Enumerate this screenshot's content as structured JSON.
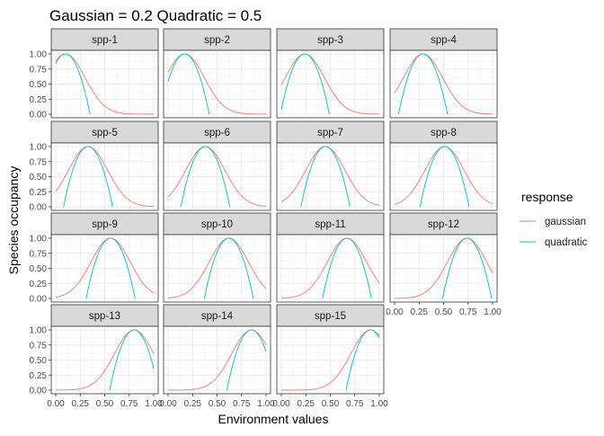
{
  "chart_data": {
    "type": "line",
    "title": "Gaussian =  0.2 Quadratic =  0.5",
    "xlabel": "Environment values",
    "ylabel": "Species occupancy",
    "xlim": [
      0,
      1
    ],
    "ylim": [
      0,
      1
    ],
    "x_ticks": [
      "0.00",
      "0.25",
      "0.50",
      "0.75",
      "1.00"
    ],
    "y_ticks": [
      "0.00",
      "0.25",
      "0.50",
      "0.75",
      "1.00"
    ],
    "grid": true,
    "legend": {
      "title": "response",
      "placement": "right",
      "entries": [
        {
          "name": "gaussian",
          "color": "#F8766D"
        },
        {
          "name": "quadratic",
          "color": "#00BFC4"
        }
      ]
    },
    "gaussian_sd": 0.2,
    "quadratic_halfwidth": 0.5,
    "panels": [
      {
        "label": "spp-1",
        "optimum": 0.1
      },
      {
        "label": "spp-2",
        "optimum": 0.17
      },
      {
        "label": "spp-3",
        "optimum": 0.24
      },
      {
        "label": "spp-4",
        "optimum": 0.29
      },
      {
        "label": "spp-5",
        "optimum": 0.33
      },
      {
        "label": "spp-6",
        "optimum": 0.38
      },
      {
        "label": "spp-7",
        "optimum": 0.45
      },
      {
        "label": "spp-8",
        "optimum": 0.51
      },
      {
        "label": "spp-9",
        "optimum": 0.56
      },
      {
        "label": "spp-10",
        "optimum": 0.62
      },
      {
        "label": "spp-11",
        "optimum": 0.67
      },
      {
        "label": "spp-12",
        "optimum": 0.74
      },
      {
        "label": "spp-13",
        "optimum": 0.8
      },
      {
        "label": "spp-14",
        "optimum": 0.85
      },
      {
        "label": "spp-15",
        "optimum": 0.91
      }
    ]
  }
}
